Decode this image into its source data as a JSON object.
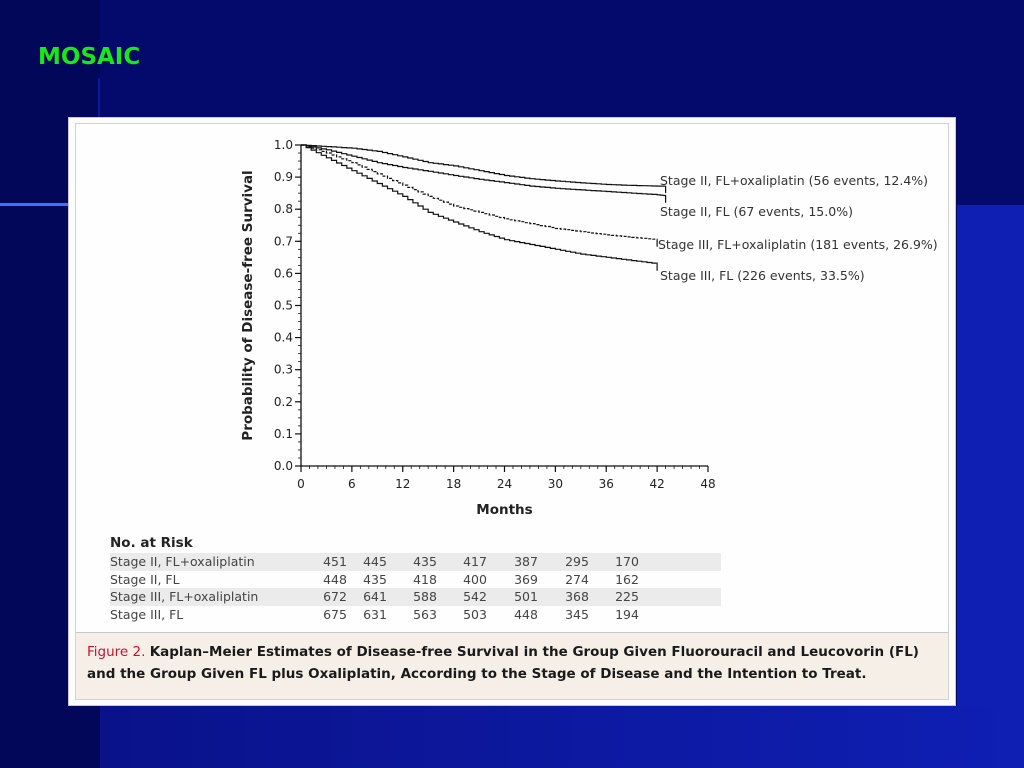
{
  "slide": {
    "title": "MOSAIC"
  },
  "chart_data": {
    "type": "line",
    "step": true,
    "xlabel": "Months",
    "ylabel": "Probability of Disease-free Survival",
    "xlim": [
      0,
      48
    ],
    "ylim": [
      0,
      1
    ],
    "xticks": [
      0,
      6,
      12,
      18,
      24,
      30,
      36,
      42,
      48
    ],
    "yticks": [
      0.0,
      0.1,
      0.2,
      0.3,
      0.4,
      0.5,
      0.6,
      0.7,
      0.8,
      0.9,
      1.0
    ],
    "ytick_labels": [
      "0.0",
      "0.1",
      "0.2",
      "0.3",
      "0.4",
      "0.5",
      "0.6",
      "0.7",
      "0.8",
      "0.9",
      "1.0"
    ],
    "grid": false,
    "series": [
      {
        "name": "Stage II, FL+oxaliplatin",
        "label": "Stage II, FL+oxaliplatin (56 events, 12.4%)",
        "style": "solid",
        "x": [
          0,
          3,
          6,
          9,
          12,
          15,
          18,
          21,
          24,
          27,
          30,
          33,
          36,
          39,
          42,
          43
        ],
        "y": [
          1.0,
          0.995,
          0.99,
          0.98,
          0.963,
          0.945,
          0.935,
          0.92,
          0.905,
          0.895,
          0.888,
          0.882,
          0.877,
          0.874,
          0.872,
          0.872
        ]
      },
      {
        "name": "Stage II, FL",
        "label": "Stage II, FL  (67 events, 15.0%)",
        "style": "solid",
        "x": [
          0,
          3,
          6,
          9,
          12,
          15,
          18,
          21,
          24,
          27,
          30,
          33,
          36,
          39,
          42,
          43
        ],
        "y": [
          1.0,
          0.985,
          0.965,
          0.945,
          0.93,
          0.918,
          0.905,
          0.893,
          0.883,
          0.872,
          0.865,
          0.86,
          0.855,
          0.85,
          0.845,
          0.842
        ]
      },
      {
        "name": "Stage III, FL+oxaliplatin",
        "label": "Stage III, FL+oxaliplatin (181 events, 26.9%)",
        "style": "dashed",
        "x": [
          0,
          3,
          6,
          9,
          12,
          15,
          18,
          21,
          24,
          27,
          30,
          33,
          36,
          39,
          42
        ],
        "y": [
          1.0,
          0.975,
          0.945,
          0.91,
          0.875,
          0.84,
          0.81,
          0.79,
          0.77,
          0.755,
          0.74,
          0.73,
          0.72,
          0.712,
          0.705
        ]
      },
      {
        "name": "Stage III, FL",
        "label": "Stage III, FL  (226 events, 33.5%)",
        "style": "solid",
        "x": [
          0,
          3,
          6,
          9,
          12,
          15,
          18,
          21,
          24,
          27,
          30,
          33,
          36,
          39,
          42
        ],
        "y": [
          1.0,
          0.96,
          0.92,
          0.88,
          0.84,
          0.79,
          0.76,
          0.73,
          0.705,
          0.69,
          0.675,
          0.66,
          0.65,
          0.64,
          0.63
        ]
      }
    ]
  },
  "risk_table": {
    "title": "No. at Risk",
    "rows": [
      {
        "label": "Stage II, FL+oxaliplatin",
        "values": [
          "451",
          "445",
          "435",
          "417",
          "387",
          "295",
          "170"
        ]
      },
      {
        "label": "Stage II, FL",
        "values": [
          "448",
          "435",
          "418",
          "400",
          "369",
          "274",
          "162"
        ]
      },
      {
        "label": "Stage III, FL+oxaliplatin",
        "values": [
          "672",
          "641",
          "588",
          "542",
          "501",
          "368",
          "225"
        ]
      },
      {
        "label": "Stage III, FL",
        "values": [
          "675",
          "631",
          "563",
          "503",
          "448",
          "345",
          "194"
        ]
      }
    ]
  },
  "caption": {
    "label": "Figure 2.",
    "text": "Kaplan–Meier Estimates of Disease-free Survival in the Group Given Fluorouracil and Leucovorin (FL) and the Group Given FL plus Oxaliplatin, According to the Stage of Disease and the Intention to Treat."
  },
  "colors": {
    "background": "#040a6c",
    "title": "#18e818",
    "figure_label": "#c8102e"
  }
}
